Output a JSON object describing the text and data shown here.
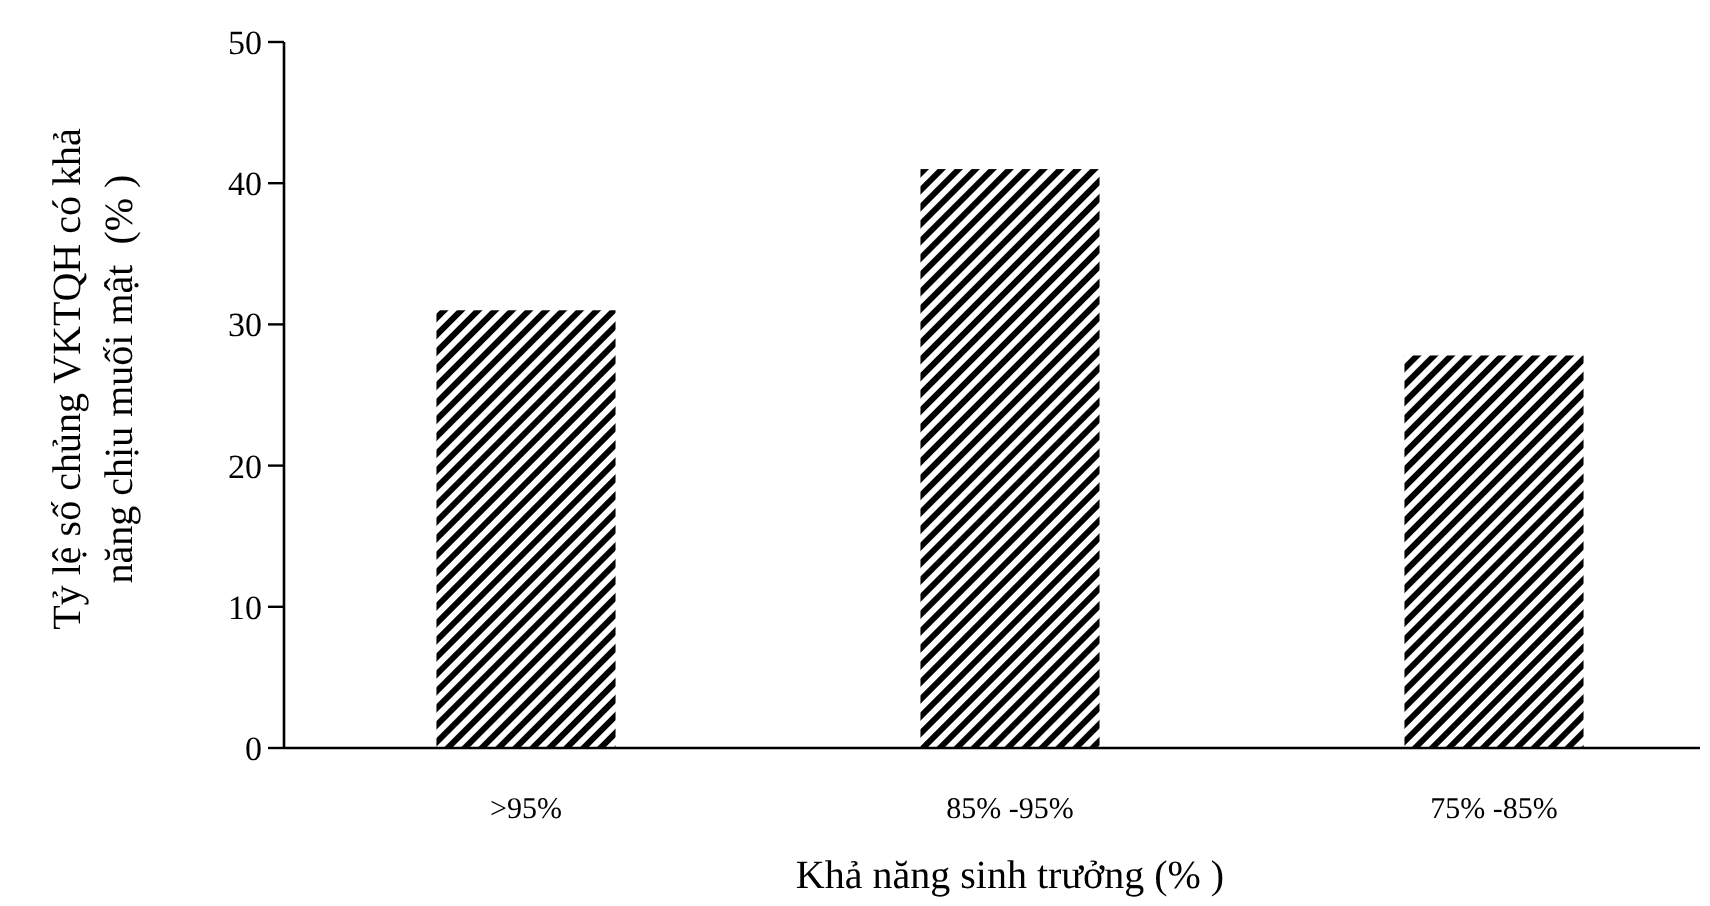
{
  "chart_data": {
    "type": "bar",
    "xlabel": "Khả năng sinh trưởng (% )",
    "ylabel": "Tỷ lệ số chủng VKTQH có khả\nnăng chịu muối mật  (% )",
    "categories": [
      ">95%",
      "85% -95%",
      "75% -85%"
    ],
    "values": [
      31,
      41,
      27.8
    ],
    "color": "#000000",
    "ylim": [
      0,
      50
    ],
    "yticks": [
      0,
      10,
      20,
      30,
      40,
      50
    ]
  }
}
